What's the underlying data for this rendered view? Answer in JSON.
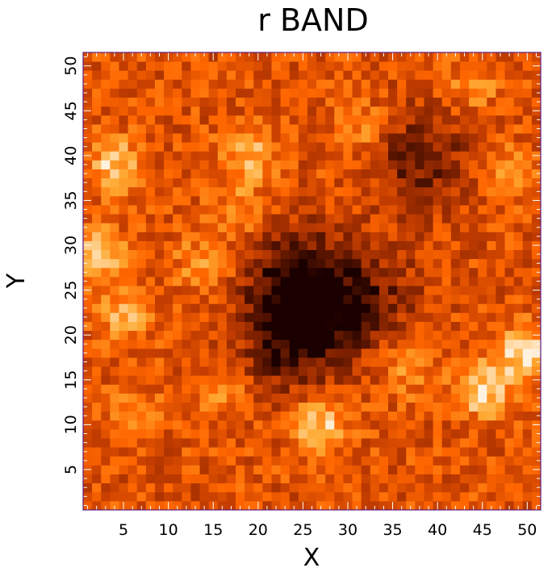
{
  "chart_data": {
    "type": "heatmap",
    "title": "r BAND",
    "xlabel": "X",
    "ylabel": "Y",
    "xlim": [
      0.5,
      51.5
    ],
    "ylim": [
      0.5,
      51.5
    ],
    "grid": false,
    "colormap": "black-red-orange-yellow-white",
    "colormap_stops": [
      "#1a0000",
      "#7a1f00",
      "#c23c00",
      "#ff6600",
      "#ffaa33",
      "#fff2e0"
    ],
    "x_ticks": [
      5,
      10,
      15,
      20,
      25,
      30,
      35,
      40,
      45,
      50
    ],
    "y_ticks": [
      5,
      10,
      15,
      20,
      25,
      30,
      35,
      40,
      45,
      50
    ],
    "x_tick_labels": [
      "5",
      "10",
      "15",
      "20",
      "25",
      "30",
      "35",
      "40",
      "45",
      "50"
    ],
    "y_tick_labels": [
      "5",
      "10",
      "15",
      "20",
      "25",
      "30",
      "35",
      "40",
      "45",
      "50"
    ],
    "grid_size": [
      51,
      51
    ],
    "background_level": 0.5,
    "bright_sources": [
      {
        "x": 4,
        "y": 39,
        "peak": 0.88
      },
      {
        "x": 2,
        "y": 29,
        "peak": 0.95
      },
      {
        "x": 5,
        "y": 22,
        "peak": 0.78
      },
      {
        "x": 19,
        "y": 40,
        "peak": 0.8
      },
      {
        "x": 18,
        "y": 34,
        "peak": 0.72
      },
      {
        "x": 14,
        "y": 28,
        "peak": 0.76
      },
      {
        "x": 32,
        "y": 43,
        "peak": 0.72
      },
      {
        "x": 50,
        "y": 18,
        "peak": 1.0
      },
      {
        "x": 45,
        "y": 14,
        "peak": 0.95
      },
      {
        "x": 27,
        "y": 10,
        "peak": 0.9
      },
      {
        "x": 48,
        "y": 38,
        "peak": 0.76
      },
      {
        "x": 44,
        "y": 48,
        "peak": 0.7
      },
      {
        "x": 37,
        "y": 16,
        "peak": 0.72
      },
      {
        "x": 6,
        "y": 11,
        "peak": 0.7
      },
      {
        "x": 16,
        "y": 14,
        "peak": 0.7
      }
    ],
    "dark_regions": [
      {
        "x": 24,
        "y": 27,
        "depth": 0.92
      },
      {
        "x": 27,
        "y": 22,
        "depth": 0.88
      },
      {
        "x": 23,
        "y": 19,
        "depth": 0.7
      },
      {
        "x": 38,
        "y": 40,
        "depth": 0.75
      },
      {
        "x": 33,
        "y": 25,
        "depth": 0.55
      }
    ]
  }
}
